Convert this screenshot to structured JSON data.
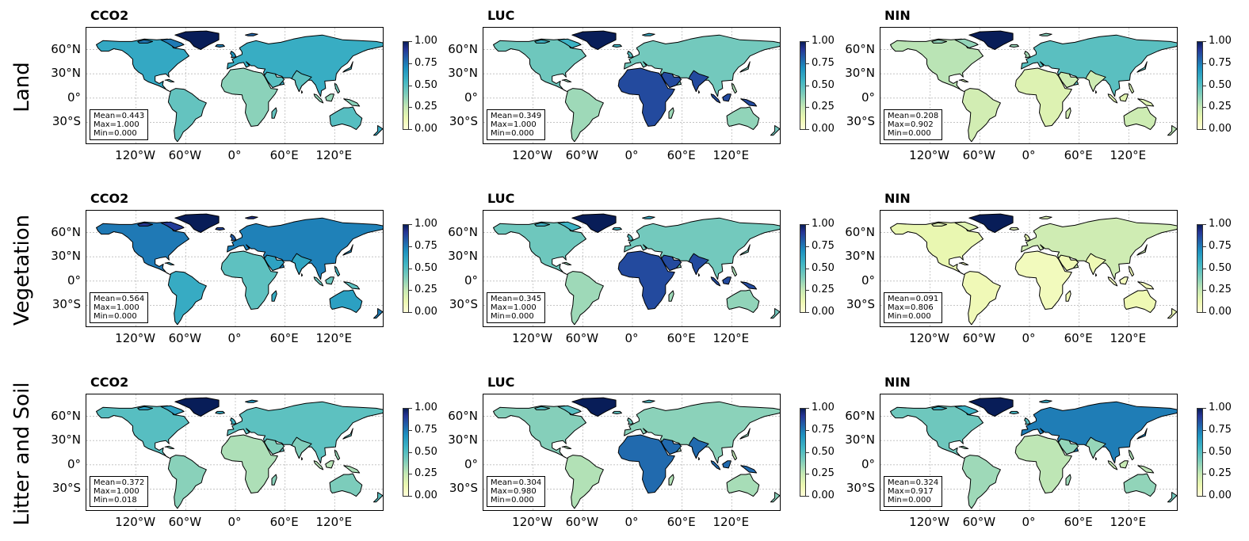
{
  "rows": [
    {
      "label": "Land",
      "panels": [
        {
          "title": "CCO2",
          "mean": "Mean=0.443",
          "max": "Max=1.000",
          "min": "Min=0.000",
          "intensity": 0.6
        },
        {
          "title": "LUC",
          "mean": "Mean=0.349",
          "max": "Max=1.000",
          "min": "Min=0.000",
          "intensity": 0.45
        },
        {
          "title": "NIN",
          "mean": "Mean=0.208",
          "max": "Max=0.902",
          "min": "Min=0.000",
          "intensity": 0.3
        }
      ]
    },
    {
      "label": "Vegetation",
      "panels": [
        {
          "title": "CCO2",
          "mean": "Mean=0.564",
          "max": "Max=1.000",
          "min": "Min=0.000",
          "intensity": 0.75
        },
        {
          "title": "LUC",
          "mean": "Mean=0.345",
          "max": "Max=1.000",
          "min": "Min=0.000",
          "intensity": 0.45
        },
        {
          "title": "NIN",
          "mean": "Mean=0.091",
          "max": "Max=0.806",
          "min": "Min=0.000",
          "intensity": 0.15
        }
      ]
    },
    {
      "label": "Litter and Soil",
      "panels": [
        {
          "title": "CCO2",
          "mean": "Mean=0.372",
          "max": "Max=1.000",
          "min": "Min=0.018",
          "intensity": 0.5
        },
        {
          "title": "LUC",
          "mean": "Mean=0.304",
          "max": "Max=0.980",
          "min": "Min=0.000",
          "intensity": 0.4
        },
        {
          "title": "NIN",
          "mean": "Mean=0.324",
          "max": "Max=0.917",
          "min": "Min=0.000",
          "intensity": 0.45
        }
      ]
    }
  ],
  "lat_ticks": [
    "60°N",
    "30°N",
    "0°",
    "30°S"
  ],
  "lon_ticks": [
    "120°W",
    "60°W",
    "0°",
    "60°E",
    "120°E"
  ],
  "colorbar": {
    "ticks": [
      "1.00",
      "0.75",
      "0.50",
      "0.25",
      "0.00"
    ],
    "colormap": "YlGnBu",
    "low_color": "#ffffd9",
    "high_color": "#081d58"
  }
}
